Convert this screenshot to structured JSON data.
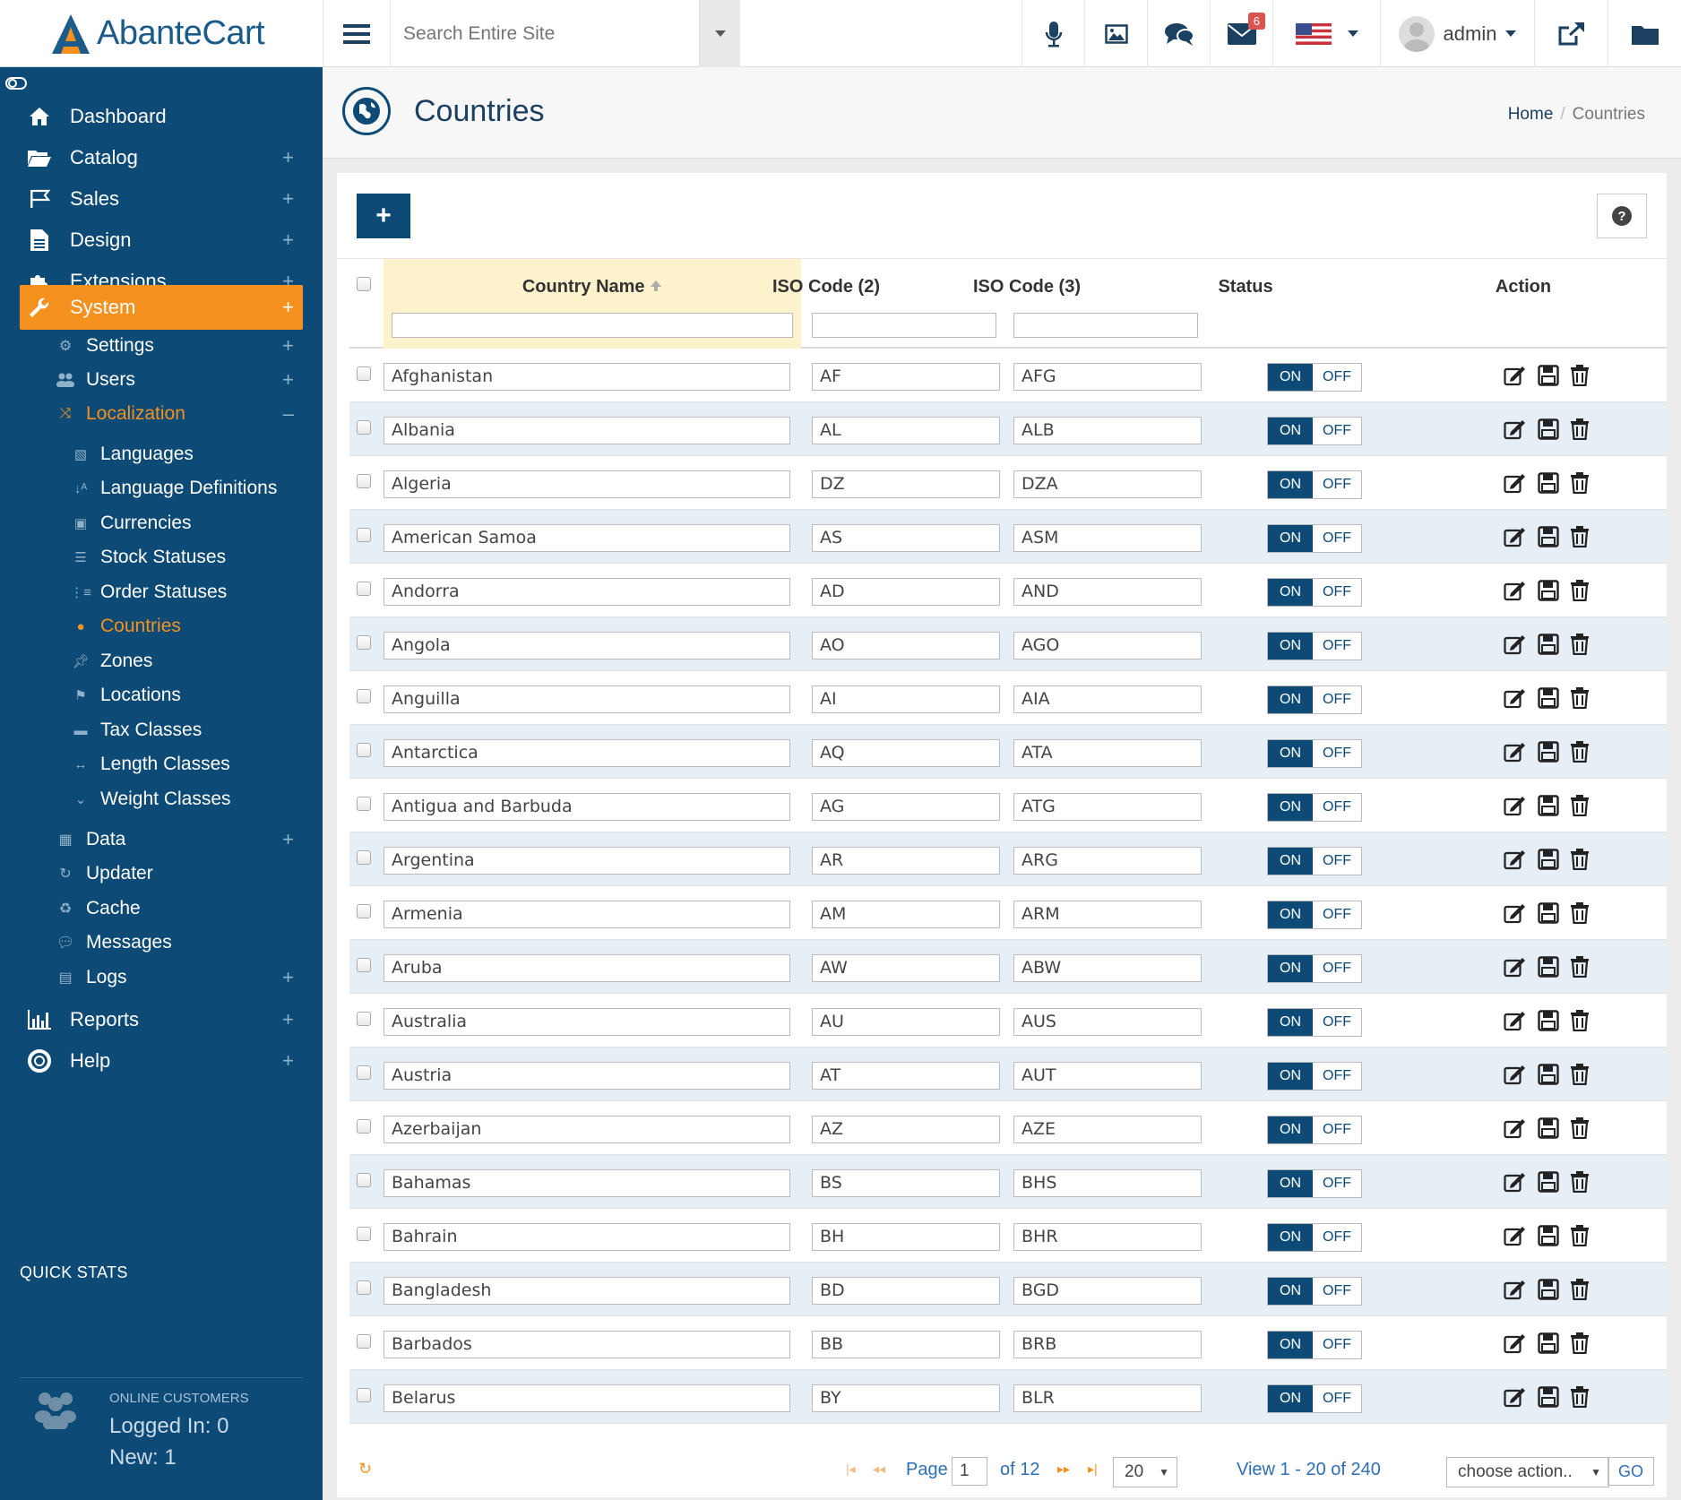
{
  "app": {
    "name": "AbanteCart"
  },
  "header": {
    "search_placeholder": "Search Entire Site",
    "mail_count": "6",
    "user_name": "admin"
  },
  "sidebar": {
    "main": [
      {
        "label": "Dashboard",
        "icon": "home-icon"
      },
      {
        "label": "Catalog",
        "icon": "folder-open-icon"
      },
      {
        "label": "Sales",
        "icon": "flag-icon"
      },
      {
        "label": "Design",
        "icon": "file-icon"
      },
      {
        "label": "Extensions",
        "icon": "puzzle-icon"
      },
      {
        "label": "System",
        "icon": "wrench-icon"
      }
    ],
    "system_sub": [
      {
        "label": "Settings",
        "icon": "cogs-icon"
      },
      {
        "label": "Users",
        "icon": "users-icon"
      },
      {
        "label": "Localization",
        "icon": "random-icon"
      }
    ],
    "localization_sub": [
      {
        "label": "Languages",
        "icon": "language-icon"
      },
      {
        "label": "Language Definitions",
        "icon": "sort-alpha-icon"
      },
      {
        "label": "Currencies",
        "icon": "money-icon"
      },
      {
        "label": "Stock Statuses",
        "icon": "list-icon"
      },
      {
        "label": "Order Statuses",
        "icon": "list-ol-icon"
      },
      {
        "label": "Countries",
        "icon": "globe-icon"
      },
      {
        "label": "Zones",
        "icon": "thumbtack-icon"
      },
      {
        "label": "Locations",
        "icon": "flag-checkered-icon"
      },
      {
        "label": "Tax Classes",
        "icon": "briefcase-icon"
      },
      {
        "label": "Length Classes",
        "icon": "arrows-h-icon"
      },
      {
        "label": "Weight Classes",
        "icon": "chevron-double-down-icon"
      }
    ],
    "system_sub2": [
      {
        "label": "Data",
        "icon": "cubes-icon"
      },
      {
        "label": "Updater",
        "icon": "refresh-icon"
      },
      {
        "label": "Cache",
        "icon": "recycle-icon"
      },
      {
        "label": "Messages",
        "icon": "comments-icon"
      },
      {
        "label": "Logs",
        "icon": "floppy-icon"
      }
    ],
    "bottom": [
      {
        "label": "Reports",
        "icon": "bar-chart-icon"
      },
      {
        "label": "Help",
        "icon": "life-ring-icon"
      }
    ],
    "quick_stats": {
      "title": "QUICK STATS",
      "label": "ONLINE CUSTOMERS",
      "logged_in": "Logged In: 0",
      "new": "New: 1"
    }
  },
  "page": {
    "title": "Countries",
    "breadcrumb_home": "Home",
    "breadcrumb_current": "Countries",
    "add_label": "+"
  },
  "grid": {
    "columns": [
      "Country Name",
      "ISO Code (2)",
      "ISO Code (3)",
      "Status",
      "Action"
    ],
    "status_on": "ON",
    "status_off": "OFF",
    "rows": [
      {
        "name": "Afghanistan",
        "iso2": "AF",
        "iso3": "AFG"
      },
      {
        "name": "Albania",
        "iso2": "AL",
        "iso3": "ALB"
      },
      {
        "name": "Algeria",
        "iso2": "DZ",
        "iso3": "DZA"
      },
      {
        "name": "American Samoa",
        "iso2": "AS",
        "iso3": "ASM"
      },
      {
        "name": "Andorra",
        "iso2": "AD",
        "iso3": "AND"
      },
      {
        "name": "Angola",
        "iso2": "AO",
        "iso3": "AGO"
      },
      {
        "name": "Anguilla",
        "iso2": "AI",
        "iso3": "AIA"
      },
      {
        "name": "Antarctica",
        "iso2": "AQ",
        "iso3": "ATA"
      },
      {
        "name": "Antigua and Barbuda",
        "iso2": "AG",
        "iso3": "ATG"
      },
      {
        "name": "Argentina",
        "iso2": "AR",
        "iso3": "ARG"
      },
      {
        "name": "Armenia",
        "iso2": "AM",
        "iso3": "ARM"
      },
      {
        "name": "Aruba",
        "iso2": "AW",
        "iso3": "ABW"
      },
      {
        "name": "Australia",
        "iso2": "AU",
        "iso3": "AUS"
      },
      {
        "name": "Austria",
        "iso2": "AT",
        "iso3": "AUT"
      },
      {
        "name": "Azerbaijan",
        "iso2": "AZ",
        "iso3": "AZE"
      },
      {
        "name": "Bahamas",
        "iso2": "BS",
        "iso3": "BHS"
      },
      {
        "name": "Bahrain",
        "iso2": "BH",
        "iso3": "BHR"
      },
      {
        "name": "Bangladesh",
        "iso2": "BD",
        "iso3": "BGD"
      },
      {
        "name": "Barbados",
        "iso2": "BB",
        "iso3": "BRB"
      },
      {
        "name": "Belarus",
        "iso2": "BY",
        "iso3": "BLR"
      }
    ]
  },
  "pager": {
    "page_label": "Page",
    "page_value": "1",
    "of_label": "of 12",
    "per_page": "20",
    "view_label": "View 1 - 20 of 240",
    "action_placeholder": "choose action..",
    "go_label": "GO"
  },
  "colors": {
    "sidebar": "#0d4a75",
    "accent": "#f5911f",
    "link": "#2f6db5"
  }
}
